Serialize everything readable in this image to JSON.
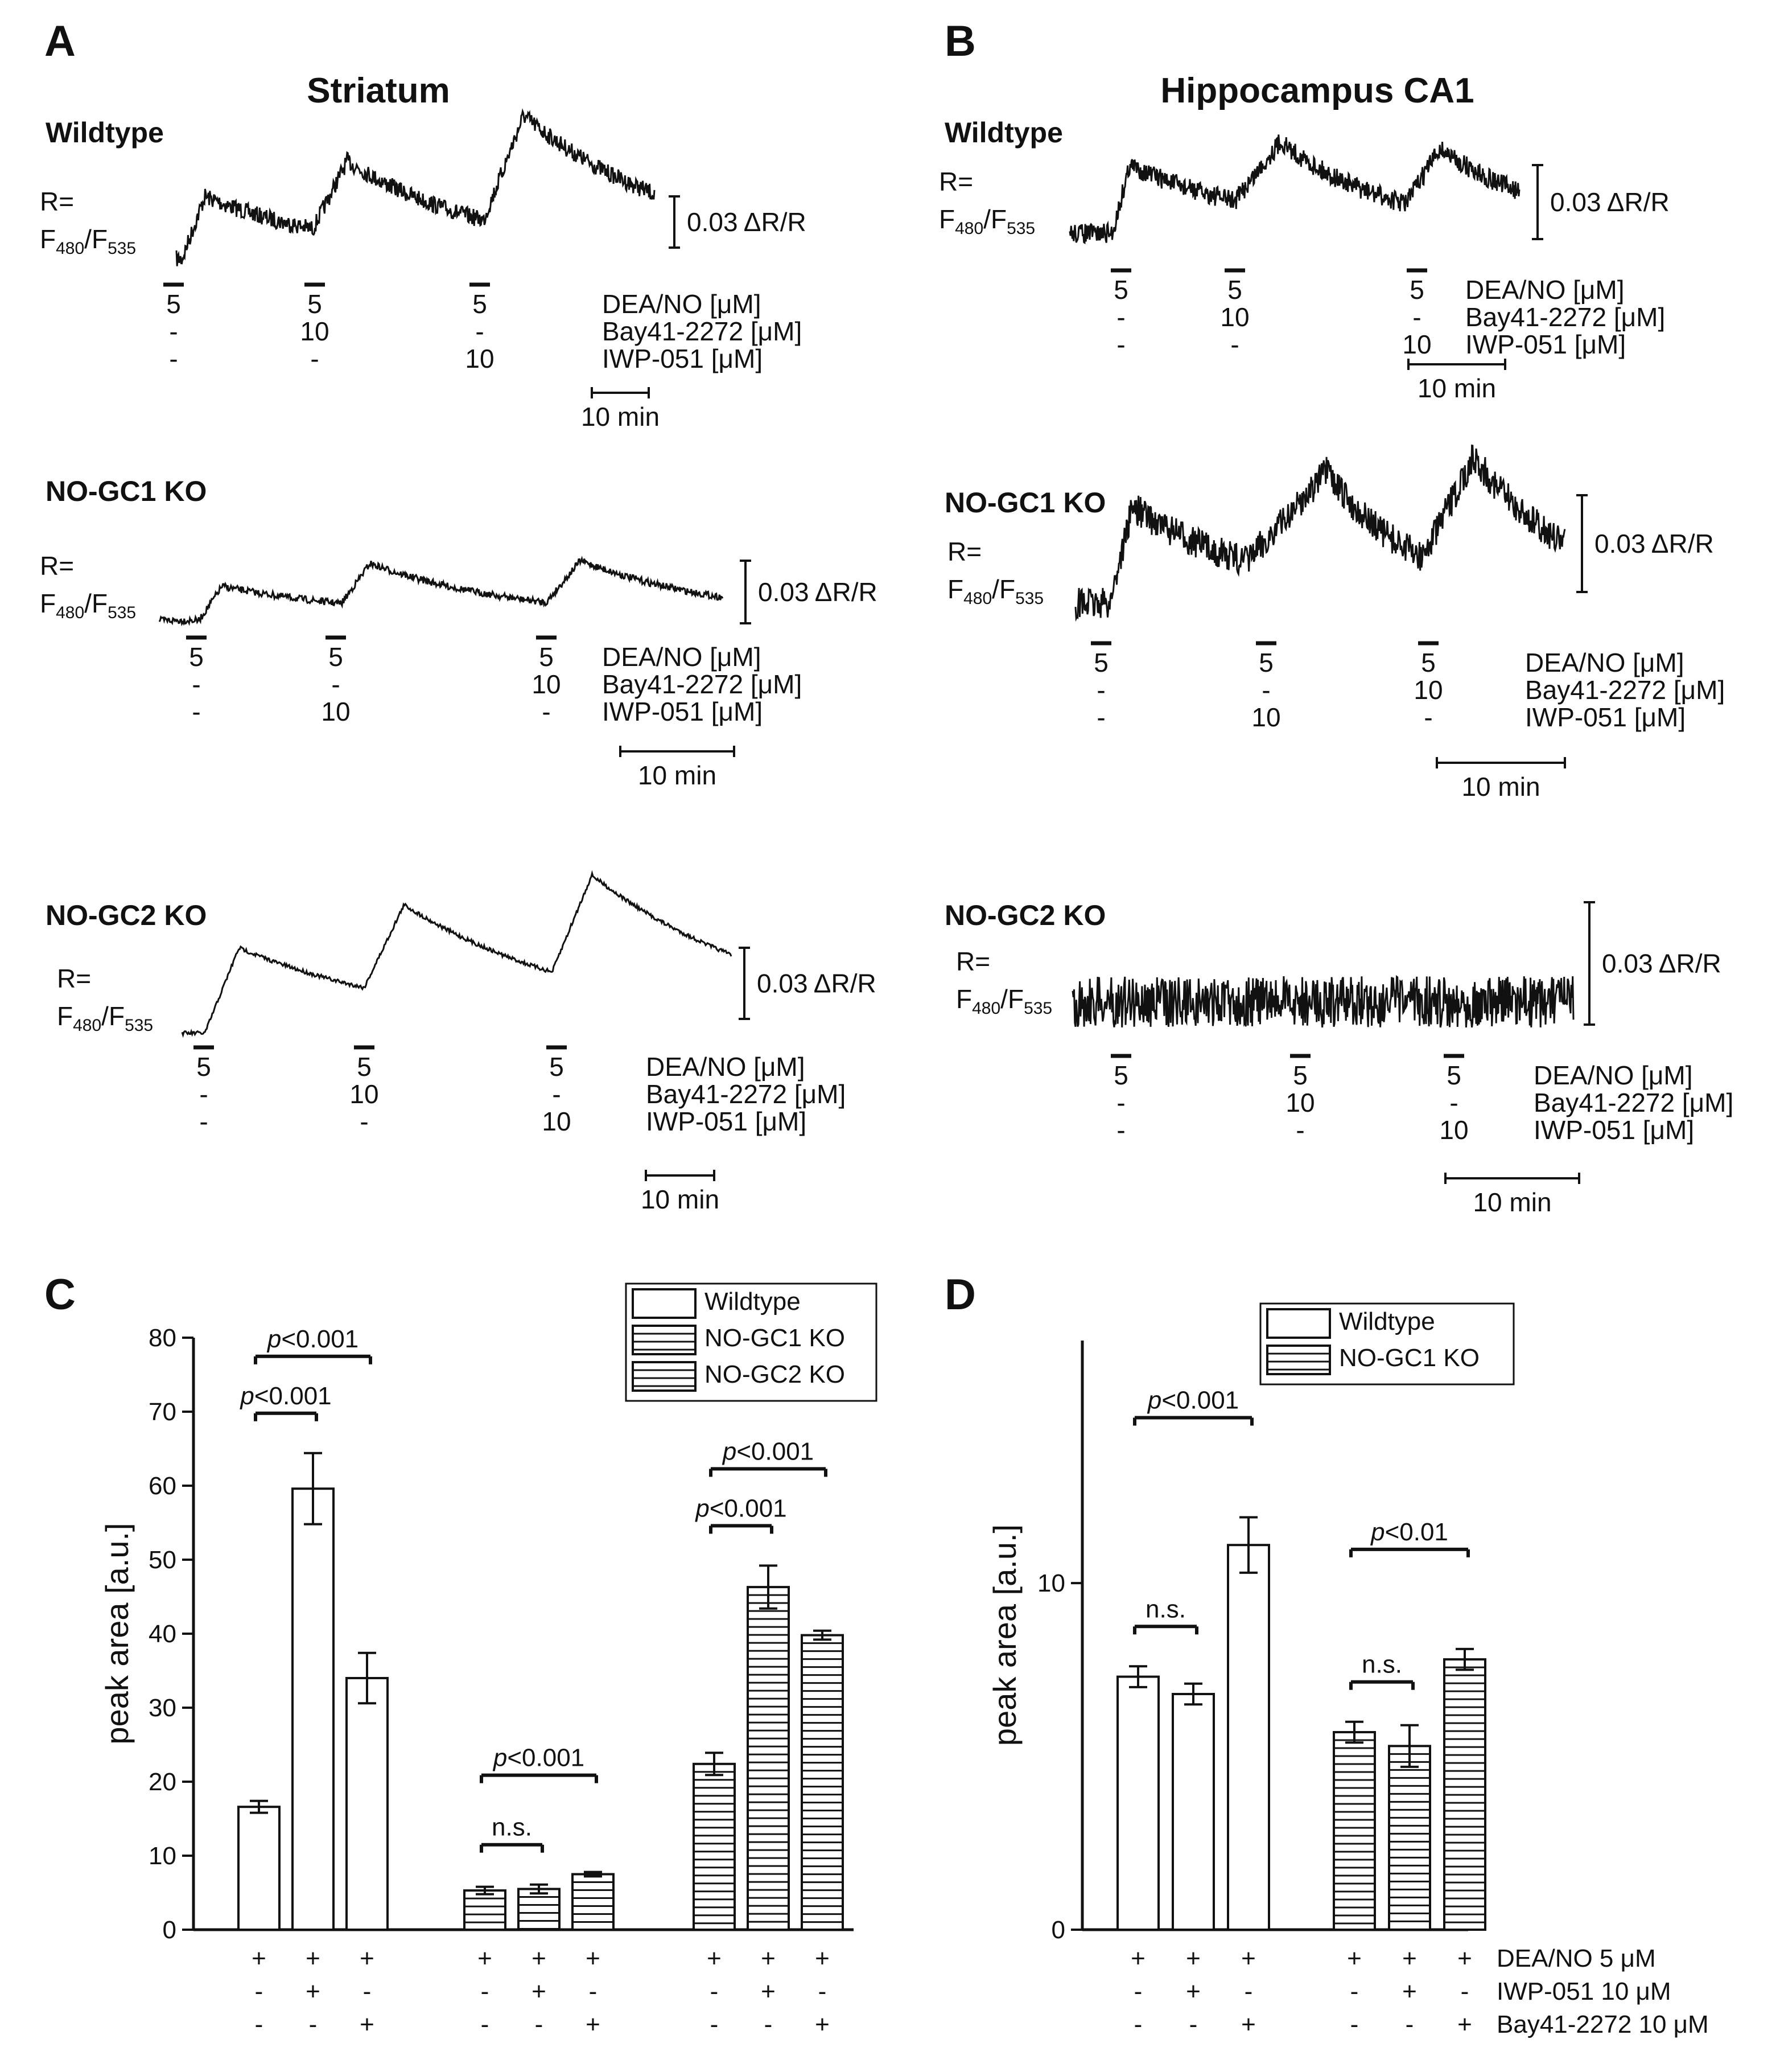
{
  "panel_letters": {
    "a": "A",
    "b": "B",
    "c": "C",
    "d": "D"
  },
  "panel_a": {
    "title": "Striatum",
    "rows": [
      {
        "genotype": "Wildtype",
        "scale_label": "0.03 ΔR/R",
        "dea": [
          "5",
          "5",
          "5"
        ],
        "bay": [
          "-",
          "10",
          "-"
        ],
        "iwp": [
          "-",
          "-",
          "10"
        ]
      },
      {
        "genotype": "NO-GC1 KO",
        "scale_label": "0.03 ΔR/R",
        "dea": [
          "5",
          "5",
          "5"
        ],
        "bay": [
          "-",
          "-",
          "10"
        ],
        "iwp": [
          "-",
          "10",
          "-"
        ]
      },
      {
        "genotype": "NO-GC2 KO",
        "scale_label": "0.03 ΔR/R",
        "dea": [
          "5",
          "5",
          "5"
        ],
        "bay": [
          "-",
          "10",
          "-"
        ],
        "iwp": [
          "-",
          "-",
          "10"
        ]
      }
    ]
  },
  "panel_b": {
    "title": "Hippocampus CA1",
    "rows": [
      {
        "genotype": "Wildtype",
        "scale_label": "0.03 ΔR/R",
        "dea": [
          "5",
          "5",
          "5"
        ],
        "bay": [
          "-",
          "10",
          "-"
        ],
        "iwp": [
          "-",
          "-",
          "10"
        ]
      },
      {
        "genotype": "NO-GC1 KO",
        "scale_label": "0.03 ΔR/R",
        "dea": [
          "5",
          "5",
          "5"
        ],
        "bay": [
          "-",
          "-",
          "10"
        ],
        "iwp": [
          "-",
          "10",
          "-"
        ]
      },
      {
        "genotype": "NO-GC2 KO",
        "scale_label": "0.03 ΔR/R",
        "dea": [
          "5",
          "5",
          "5"
        ],
        "bay": [
          "-",
          "10",
          "-"
        ],
        "iwp": [
          "-",
          "-",
          "10"
        ]
      }
    ]
  },
  "trace_labels": {
    "ratio_r": "R=",
    "ratio_f1": "F",
    "ratio_sub1": "480",
    "ratio_slash": "/F",
    "ratio_sub2": "535",
    "dea_label": "DEA/NO [μM]",
    "bay_label": "Bay41-2272 [μM]",
    "iwp_label": "IWP-051 [μM]",
    "time_bar": "10 min"
  },
  "chart_data": [
    {
      "panel": "C",
      "type": "bar",
      "ylabel": "peak area [a.u.]",
      "ylim": [
        0,
        80
      ],
      "yticks": [
        0,
        10,
        20,
        30,
        40,
        50,
        60,
        70,
        80
      ],
      "legend": [
        "Wildtype",
        "NO-GC1 KO",
        "NO-GC2 KO"
      ],
      "legend_position": "top-right",
      "groups": [
        {
          "name": "Wildtype",
          "fill": "open",
          "values": [
            16.6,
            59.6,
            34.0
          ],
          "errors": [
            0.8,
            4.8,
            3.4
          ]
        },
        {
          "name": "NO-GC1 KO",
          "fill": "hatched",
          "values": [
            5.3,
            5.5,
            7.5
          ],
          "errors": [
            0.5,
            0.6,
            0.3
          ]
        },
        {
          "name": "NO-GC2 KO",
          "fill": "hatched",
          "values": [
            22.4,
            46.3,
            39.8
          ],
          "errors": [
            1.5,
            2.9,
            0.6
          ]
        }
      ],
      "conditions": [
        [
          "+",
          "-",
          "-"
        ],
        [
          "+",
          "+",
          "-"
        ],
        [
          "+",
          "-",
          "+"
        ]
      ],
      "significance": [
        {
          "group": 0,
          "from": 0,
          "to": 2,
          "label_p": "p",
          "label_rest": "<0.001"
        },
        {
          "group": 0,
          "from": 0,
          "to": 1,
          "label_p": "p",
          "label_rest": "<0.001"
        },
        {
          "group": 1,
          "from": 0,
          "to": 2,
          "label_p": "p",
          "label_rest": "<0.001"
        },
        {
          "group": 1,
          "from": 0,
          "to": 1,
          "label_p": "",
          "label_rest": "n.s."
        },
        {
          "group": 2,
          "from": 0,
          "to": 2,
          "label_p": "p",
          "label_rest": "<0.001"
        },
        {
          "group": 2,
          "from": 0,
          "to": 1,
          "label_p": "p",
          "label_rest": "<0.001"
        }
      ]
    },
    {
      "panel": "D",
      "type": "bar",
      "ylabel": "peak area [a.u.]",
      "ylim": [
        0,
        17
      ],
      "yticks": [
        0,
        10
      ],
      "legend": [
        "Wildtype",
        "NO-GC1 KO"
      ],
      "legend_position": "top-right",
      "groups": [
        {
          "name": "Wildtype",
          "fill": "open",
          "values": [
            7.3,
            6.8,
            11.1
          ],
          "errors": [
            0.3,
            0.3,
            0.8
          ]
        },
        {
          "name": "NO-GC1 KO",
          "fill": "hatched",
          "values": [
            5.7,
            5.3,
            7.8
          ],
          "errors": [
            0.3,
            0.6,
            0.3
          ]
        }
      ],
      "row_labels": [
        "DEA/NO 5 μM",
        "IWP-051 10 μM",
        "Bay41-2272 10 μM"
      ],
      "conditions": [
        [
          "+",
          "-",
          "-"
        ],
        [
          "+",
          "+",
          "-"
        ],
        [
          "+",
          "-",
          "+"
        ]
      ],
      "significance": [
        {
          "group": 0,
          "from": 0,
          "to": 2,
          "label_p": "p",
          "label_rest": "<0.001"
        },
        {
          "group": 0,
          "from": 0,
          "to": 1,
          "label_p": "",
          "label_rest": "n.s."
        },
        {
          "group": 1,
          "from": 0,
          "to": 2,
          "label_p": "p",
          "label_rest": "<0.01"
        },
        {
          "group": 1,
          "from": 0,
          "to": 1,
          "label_p": "",
          "label_rest": "n.s."
        }
      ]
    }
  ]
}
